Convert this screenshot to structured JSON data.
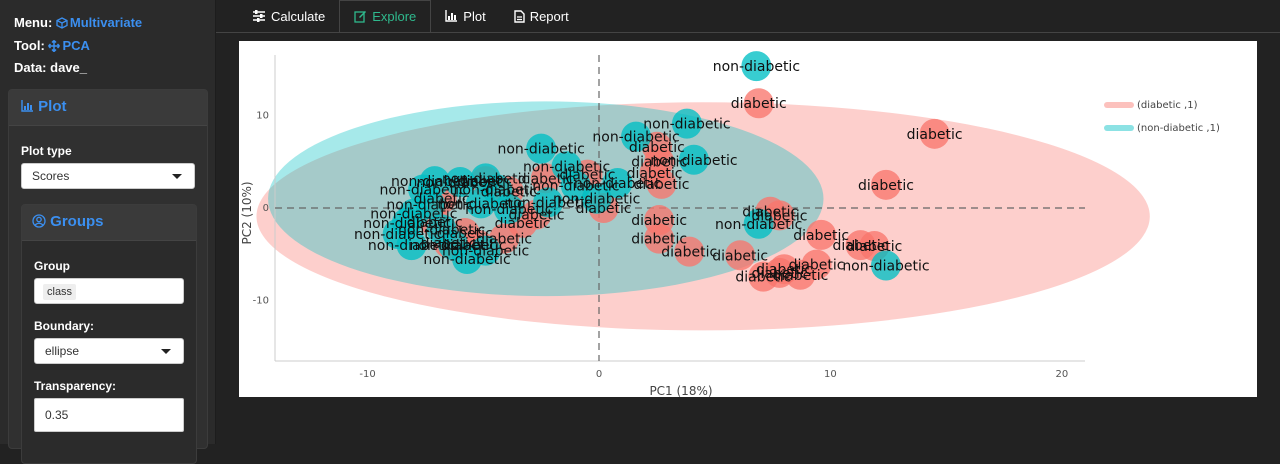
{
  "sidebar": {
    "menu_label": "Menu:",
    "menu_value": "Multivariate",
    "tool_label": "Tool:",
    "tool_value": "PCA",
    "data_label": "Data:",
    "data_value": "dave_",
    "plot_panel_title": "Plot",
    "plot_type_label": "Plot type",
    "plot_type_value": "Scores",
    "groups_title": "Groups",
    "group_label": "Group",
    "group_value": "class",
    "boundary_label": "Boundary:",
    "boundary_value": "ellipse",
    "transparency_label": "Transparency:",
    "transparency_value": "0.35"
  },
  "tabs": [
    {
      "label": "Calculate",
      "icon": "sliders-icon"
    },
    {
      "label": "Explore",
      "icon": "edit-icon"
    },
    {
      "label": "Plot",
      "icon": "bar-chart-icon"
    },
    {
      "label": "Report",
      "icon": "file-icon"
    }
  ],
  "active_tab": "Explore",
  "chart_data": {
    "type": "scatter",
    "xlabel": "PC1 (18%)",
    "ylabel": "PC2 (10%)",
    "xlim": [
      -14,
      21
    ],
    "ylim": [
      -16.5,
      16.5
    ],
    "xticks": [
      -10,
      0,
      10,
      20
    ],
    "yticks": [
      -10,
      0,
      10
    ],
    "legend_position": "top-right",
    "colors": {
      "diabetic": "#f8766d",
      "non-diabetic": "#00bfc4"
    },
    "ellipses": [
      {
        "name": "(diabetic  ,1)",
        "cx": 4.5,
        "cy": -0.9,
        "rx": 19.3,
        "ry": 12.3,
        "color": "#f8766d",
        "opacity": 0.35
      },
      {
        "name": "(non-diabetic  ,1)",
        "cx": -2.3,
        "cy": 1.0,
        "rx": 12.0,
        "ry": 10.5,
        "color": "#00bfc4",
        "opacity": 0.35
      }
    ],
    "series": [
      {
        "name": "diabetic",
        "points": [
          [
            6.9,
            11.3
          ],
          [
            14.5,
            8.0
          ],
          [
            12.4,
            2.5
          ],
          [
            2.5,
            6.6
          ],
          [
            2.6,
            5.0
          ],
          [
            2.4,
            3.8
          ],
          [
            2.7,
            2.6
          ],
          [
            0.2,
            0.0
          ],
          [
            2.6,
            -1.3
          ],
          [
            2.6,
            -3.3
          ],
          [
            3.9,
            -4.7
          ],
          [
            6.1,
            -5.1
          ],
          [
            7.4,
            -0.4
          ],
          [
            7.8,
            -0.8
          ],
          [
            9.6,
            -2.9
          ],
          [
            11.3,
            -4.0
          ],
          [
            11.9,
            -4.1
          ],
          [
            8.0,
            -6.6
          ],
          [
            8.7,
            -7.2
          ],
          [
            9.4,
            -6.1
          ],
          [
            7.1,
            -7.4
          ],
          [
            7.8,
            -7.0
          ],
          [
            -0.5,
            3.6
          ],
          [
            -2.3,
            3.2
          ],
          [
            -3.9,
            1.8
          ],
          [
            -2.7,
            -0.7
          ],
          [
            -4.1,
            -3.3
          ],
          [
            -5.2,
            -4.0
          ],
          [
            -6.8,
            1.0
          ],
          [
            -7.1,
            -1.5
          ],
          [
            -5.8,
            -2.7
          ],
          [
            -6.5,
            -3.8
          ],
          [
            -3.3,
            -1.6
          ],
          [
            -4.9,
            2.9
          ]
        ]
      },
      {
        "name": "non-diabetic",
        "points": [
          [
            6.8,
            15.3
          ],
          [
            3.8,
            9.1
          ],
          [
            1.6,
            7.7
          ],
          [
            4.1,
            5.2
          ],
          [
            -2.5,
            6.4
          ],
          [
            -1.4,
            4.5
          ],
          [
            -4.9,
            3.2
          ],
          [
            -6.0,
            2.8
          ],
          [
            -7.1,
            2.9
          ],
          [
            -7.6,
            2.0
          ],
          [
            -7.3,
            0.4
          ],
          [
            -8.0,
            -0.6
          ],
          [
            -8.3,
            -1.6
          ],
          [
            -8.7,
            -2.8
          ],
          [
            -8.1,
            -4.0
          ],
          [
            -6.3,
            -4.0
          ],
          [
            -5.7,
            -5.5
          ],
          [
            -4.9,
            -4.6
          ],
          [
            -6.8,
            -2.3
          ],
          [
            -5.1,
            0.5
          ],
          [
            -3.9,
            -0.1
          ],
          [
            -2.2,
            0.6
          ],
          [
            -1.0,
            2.4
          ],
          [
            0.8,
            2.7
          ],
          [
            -0.1,
            1.0
          ],
          [
            6.9,
            -1.7
          ],
          [
            12.4,
            -6.2
          ],
          [
            -4.4,
            2.0
          ]
        ]
      }
    ]
  }
}
